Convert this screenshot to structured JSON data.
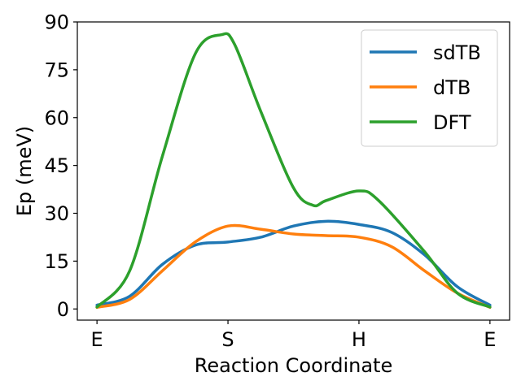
{
  "chart_data": {
    "type": "line",
    "title": "",
    "xlabel": "Reaction Coordinate",
    "ylabel": "Ep (meV)",
    "xticks": [
      "E",
      "S",
      "H",
      "E"
    ],
    "xlim": [
      -0.15,
      3.15
    ],
    "ylim": [
      -3.5,
      90
    ],
    "yticks": [
      0,
      15,
      30,
      45,
      60,
      75,
      90
    ],
    "grid": false,
    "legend": "top-right",
    "series": [
      {
        "name": "sdTB",
        "color": "#1f77b4",
        "points": [
          [
            0,
            1.2
          ],
          [
            0.25,
            4
          ],
          [
            0.5,
            14
          ],
          [
            0.75,
            20
          ],
          [
            1.0,
            21
          ],
          [
            1.25,
            22.5
          ],
          [
            1.5,
            26
          ],
          [
            1.75,
            27.5
          ],
          [
            2.0,
            26.5
          ],
          [
            2.25,
            24
          ],
          [
            2.5,
            17
          ],
          [
            2.75,
            7
          ],
          [
            3.0,
            1.2
          ]
        ]
      },
      {
        "name": "dTB",
        "color": "#ff7f0e",
        "points": [
          [
            0,
            0.5
          ],
          [
            0.25,
            3
          ],
          [
            0.5,
            12
          ],
          [
            0.75,
            21
          ],
          [
            1.0,
            26
          ],
          [
            1.25,
            25
          ],
          [
            1.5,
            23.5
          ],
          [
            1.75,
            23
          ],
          [
            2.0,
            22.5
          ],
          [
            2.25,
            19.5
          ],
          [
            2.5,
            12
          ],
          [
            2.75,
            5
          ],
          [
            3.0,
            0.5
          ]
        ]
      },
      {
        "name": "DFT",
        "color": "#2ca02c",
        "points": [
          [
            0,
            0.6
          ],
          [
            0.25,
            12
          ],
          [
            0.5,
            48
          ],
          [
            0.75,
            80
          ],
          [
            0.95,
            86
          ],
          [
            1.05,
            83
          ],
          [
            1.25,
            62
          ],
          [
            1.5,
            38
          ],
          [
            1.65,
            32.5
          ],
          [
            1.75,
            34
          ],
          [
            2.0,
            37
          ],
          [
            2.15,
            34
          ],
          [
            2.5,
            18
          ],
          [
            2.75,
            5
          ],
          [
            3.0,
            0.6
          ]
        ]
      }
    ]
  }
}
